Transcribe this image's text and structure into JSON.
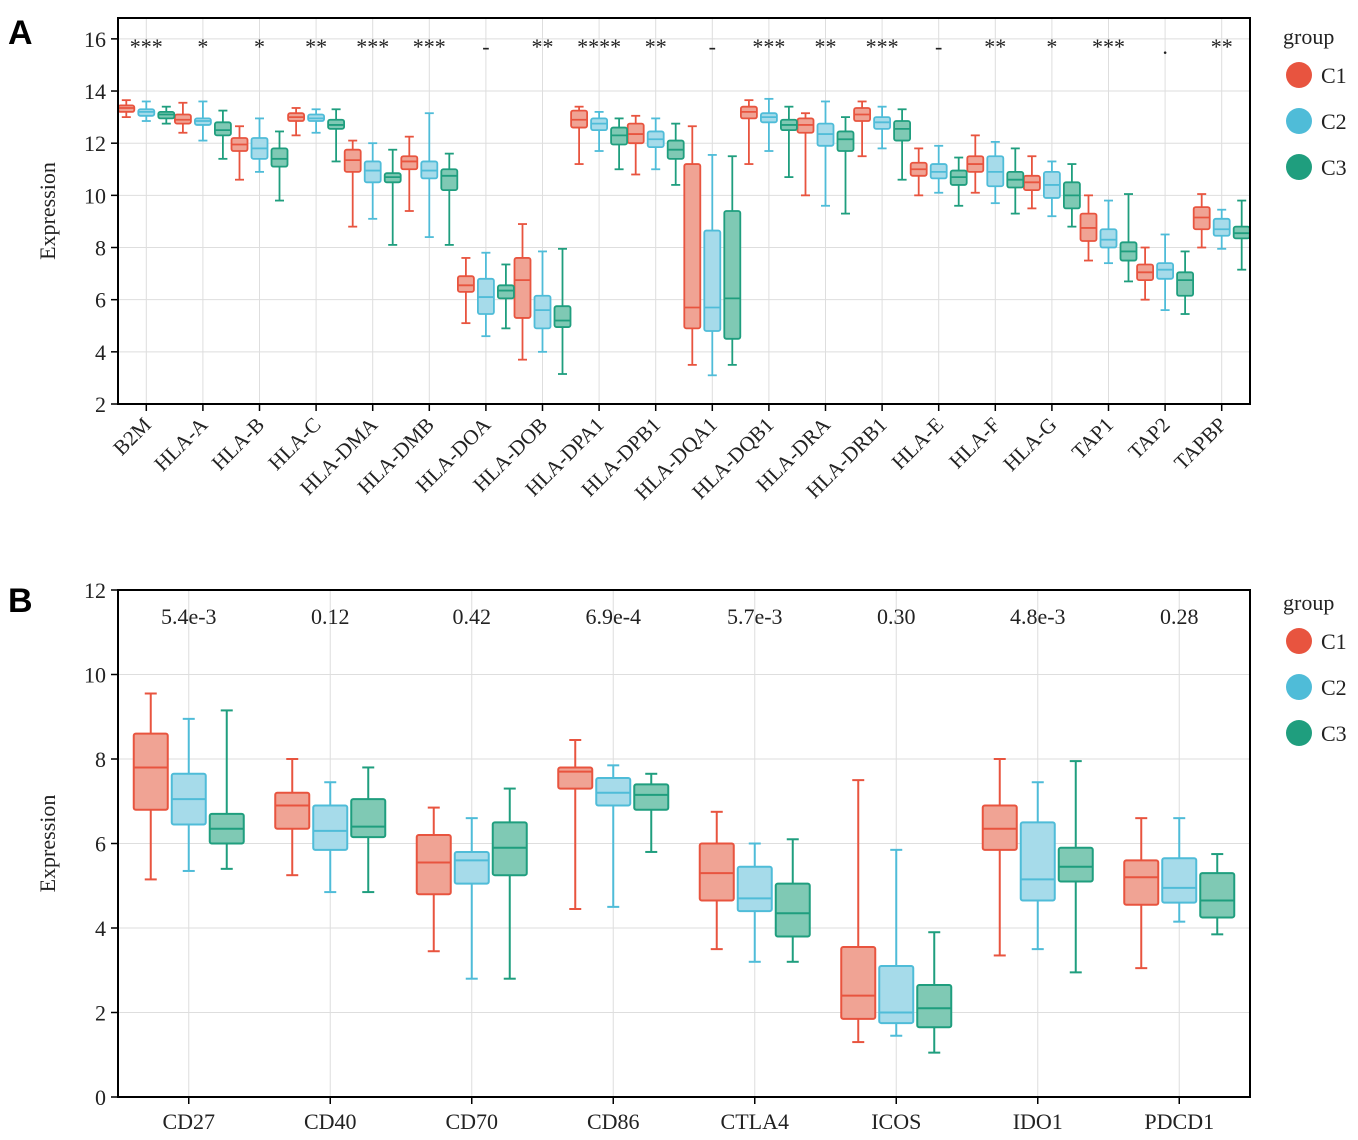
{
  "chart_data": [
    {
      "type": "box",
      "panel": "A",
      "ylabel": "Expression",
      "ylim": [
        2,
        16.8
      ],
      "yticks": [
        2,
        4,
        6,
        8,
        10,
        12,
        14,
        16
      ],
      "grid": true,
      "legend": {
        "title": "group",
        "placement": "right",
        "entries": [
          "C1",
          "C2",
          "C3"
        ]
      },
      "colors": {
        "C1": {
          "stroke": "#e8543f",
          "fill": "#f0a394"
        },
        "C2": {
          "stroke": "#4fbcd8",
          "fill": "#a6dbea"
        },
        "C3": {
          "stroke": "#1f9e7e",
          "fill": "#7fc9b4"
        }
      },
      "categories": [
        "B2M",
        "HLA-A",
        "HLA-B",
        "HLA-C",
        "HLA-DMA",
        "HLA-DMB",
        "HLA-DOA",
        "HLA-DOB",
        "HLA-DPA1",
        "HLA-DPB1",
        "HLA-DQA1",
        "HLA-DQB1",
        "HLA-DRA",
        "HLA-DRB1",
        "HLA-E",
        "HLA-F",
        "HLA-G",
        "TAP1",
        "TAP2",
        "TAPBP"
      ],
      "annotations": [
        "***",
        "*",
        "*",
        "**",
        "***",
        "***",
        "-",
        "**",
        "****",
        "**",
        "-",
        "***",
        "**",
        "***",
        "-",
        "**",
        "*",
        "***",
        ".",
        "**"
      ],
      "series": [
        {
          "name": "C1",
          "boxes": [
            [
              13.0,
              13.2,
              13.35,
              13.45,
              13.65
            ],
            [
              12.4,
              12.75,
              12.9,
              13.1,
              13.55
            ],
            [
              10.6,
              11.7,
              11.95,
              12.2,
              12.65
            ],
            [
              12.3,
              12.85,
              13.0,
              13.15,
              13.35
            ],
            [
              8.8,
              10.9,
              11.35,
              11.75,
              12.1
            ],
            [
              9.4,
              11.0,
              11.3,
              11.5,
              12.25
            ],
            [
              5.1,
              6.3,
              6.55,
              6.9,
              7.6
            ],
            [
              3.7,
              5.3,
              6.75,
              7.6,
              8.9
            ],
            [
              11.2,
              12.6,
              12.9,
              13.25,
              13.4
            ],
            [
              10.8,
              12.0,
              12.35,
              12.75,
              13.05
            ],
            [
              3.5,
              4.9,
              5.7,
              11.2,
              12.65
            ],
            [
              11.2,
              12.95,
              13.2,
              13.4,
              13.65
            ],
            [
              10.0,
              12.4,
              12.7,
              12.95,
              13.15
            ],
            [
              11.5,
              12.85,
              13.1,
              13.35,
              13.6
            ],
            [
              10.0,
              10.75,
              11.0,
              11.25,
              11.8
            ],
            [
              10.1,
              10.9,
              11.2,
              11.5,
              12.3
            ],
            [
              9.5,
              10.2,
              10.5,
              10.75,
              11.5
            ],
            [
              7.5,
              8.25,
              8.75,
              9.3,
              10.0
            ],
            [
              6.0,
              6.75,
              7.05,
              7.35,
              8.0
            ],
            [
              8.0,
              8.7,
              9.15,
              9.55,
              10.05
            ]
          ]
        },
        {
          "name": "C2",
          "boxes": [
            [
              12.85,
              13.05,
              13.2,
              13.3,
              13.6
            ],
            [
              12.1,
              12.7,
              12.85,
              12.95,
              13.6
            ],
            [
              10.9,
              11.4,
              11.8,
              12.2,
              12.95
            ],
            [
              12.4,
              12.85,
              12.95,
              13.1,
              13.3
            ],
            [
              9.1,
              10.5,
              10.95,
              11.3,
              12.0
            ],
            [
              8.4,
              10.65,
              10.95,
              11.3,
              13.15
            ],
            [
              4.6,
              5.45,
              6.1,
              6.8,
              7.8
            ],
            [
              4.0,
              4.9,
              5.6,
              6.15,
              7.85
            ],
            [
              11.7,
              12.5,
              12.75,
              12.95,
              13.2
            ],
            [
              11.0,
              11.85,
              12.15,
              12.45,
              12.95
            ],
            [
              3.1,
              4.8,
              5.7,
              8.65,
              11.55
            ],
            [
              11.7,
              12.8,
              13.0,
              13.15,
              13.7
            ],
            [
              9.6,
              11.9,
              12.35,
              12.75,
              13.6
            ],
            [
              11.8,
              12.55,
              12.8,
              13.0,
              13.4
            ],
            [
              10.1,
              10.65,
              10.9,
              11.2,
              11.9
            ],
            [
              9.7,
              10.35,
              10.9,
              11.5,
              12.05
            ],
            [
              9.2,
              9.9,
              10.4,
              10.9,
              11.3
            ],
            [
              7.4,
              8.0,
              8.3,
              8.7,
              9.8
            ],
            [
              5.6,
              6.8,
              7.15,
              7.4,
              8.5
            ],
            [
              7.95,
              8.45,
              8.7,
              9.1,
              9.45
            ]
          ]
        },
        {
          "name": "C3",
          "boxes": [
            [
              12.75,
              12.95,
              13.1,
              13.2,
              13.4
            ],
            [
              11.4,
              12.3,
              12.5,
              12.8,
              13.25
            ],
            [
              9.8,
              11.1,
              11.4,
              11.8,
              12.45
            ],
            [
              11.3,
              12.55,
              12.7,
              12.9,
              13.3
            ],
            [
              8.1,
              10.5,
              10.7,
              10.85,
              11.75
            ],
            [
              8.1,
              10.2,
              10.75,
              11.0,
              11.6
            ],
            [
              4.9,
              6.05,
              6.35,
              6.55,
              7.35
            ],
            [
              3.15,
              4.95,
              5.2,
              5.75,
              7.95
            ],
            [
              11.0,
              11.95,
              12.3,
              12.6,
              12.95
            ],
            [
              10.4,
              11.4,
              11.75,
              12.1,
              12.75
            ],
            [
              3.5,
              4.5,
              6.05,
              9.4,
              11.5
            ],
            [
              10.7,
              12.5,
              12.7,
              12.9,
              13.4
            ],
            [
              9.3,
              11.7,
              12.15,
              12.45,
              13.0
            ],
            [
              10.6,
              12.1,
              12.55,
              12.85,
              13.3
            ],
            [
              9.6,
              10.4,
              10.7,
              10.95,
              11.45
            ],
            [
              9.3,
              10.3,
              10.6,
              10.9,
              11.8
            ],
            [
              8.8,
              9.5,
              10.0,
              10.5,
              11.2
            ],
            [
              6.7,
              7.5,
              7.85,
              8.2,
              10.05
            ],
            [
              5.45,
              6.15,
              6.75,
              7.05,
              7.85
            ],
            [
              7.15,
              8.35,
              8.55,
              8.8,
              9.8
            ]
          ]
        }
      ]
    },
    {
      "type": "box",
      "panel": "B",
      "ylabel": "Expression",
      "ylim": [
        0,
        12
      ],
      "yticks": [
        0,
        2,
        4,
        6,
        8,
        10,
        12
      ],
      "grid": true,
      "legend": {
        "title": "group",
        "placement": "right",
        "entries": [
          "C1",
          "C2",
          "C3"
        ]
      },
      "colors": {
        "C1": {
          "stroke": "#e8543f",
          "fill": "#f0a394"
        },
        "C2": {
          "stroke": "#4fbcd8",
          "fill": "#a6dbea"
        },
        "C3": {
          "stroke": "#1f9e7e",
          "fill": "#7fc9b4"
        }
      },
      "categories": [
        "CD27",
        "CD40",
        "CD70",
        "CD86",
        "CTLA4",
        "ICOS",
        "IDO1",
        "PDCD1"
      ],
      "annotations": [
        "5.4e-3",
        "0.12",
        "0.42",
        "6.9e-4",
        "5.7e-3",
        "0.30",
        "4.8e-3",
        "0.28"
      ],
      "series": [
        {
          "name": "C1",
          "boxes": [
            [
              5.15,
              6.8,
              7.8,
              8.6,
              9.55
            ],
            [
              5.25,
              6.35,
              6.9,
              7.2,
              8.0
            ],
            [
              3.45,
              4.8,
              5.55,
              6.2,
              6.85
            ],
            [
              4.45,
              7.3,
              7.7,
              7.8,
              8.45
            ],
            [
              3.5,
              4.65,
              5.3,
              6.0,
              6.75
            ],
            [
              1.3,
              1.85,
              2.4,
              3.55,
              7.5
            ],
            [
              3.35,
              5.85,
              6.35,
              6.9,
              8.0
            ],
            [
              3.05,
              4.55,
              5.2,
              5.6,
              6.6
            ]
          ]
        },
        {
          "name": "C2",
          "boxes": [
            [
              5.35,
              6.45,
              7.05,
              7.65,
              8.95
            ],
            [
              4.85,
              5.85,
              6.3,
              6.9,
              7.45
            ],
            [
              2.8,
              5.05,
              5.6,
              5.8,
              6.6
            ],
            [
              4.5,
              6.9,
              7.2,
              7.55,
              7.85
            ],
            [
              3.2,
              4.4,
              4.7,
              5.45,
              6.0
            ],
            [
              1.45,
              1.75,
              2.0,
              3.1,
              5.85
            ],
            [
              3.5,
              4.65,
              5.15,
              6.5,
              7.45
            ],
            [
              4.15,
              4.6,
              4.95,
              5.65,
              6.6
            ]
          ]
        },
        {
          "name": "C3",
          "boxes": [
            [
              5.4,
              6.0,
              6.35,
              6.7,
              9.15
            ],
            [
              4.85,
              6.15,
              6.4,
              7.05,
              7.8
            ],
            [
              2.8,
              5.25,
              5.9,
              6.5,
              7.3
            ],
            [
              5.8,
              6.8,
              7.15,
              7.4,
              7.65
            ],
            [
              3.2,
              3.8,
              4.35,
              5.05,
              6.1
            ],
            [
              1.05,
              1.65,
              2.1,
              2.65,
              3.9
            ],
            [
              2.95,
              5.1,
              5.45,
              5.9,
              7.95
            ],
            [
              3.85,
              4.25,
              4.65,
              5.3,
              5.75
            ]
          ]
        }
      ]
    }
  ],
  "panels": {
    "a_label": "A",
    "b_label": "B"
  }
}
